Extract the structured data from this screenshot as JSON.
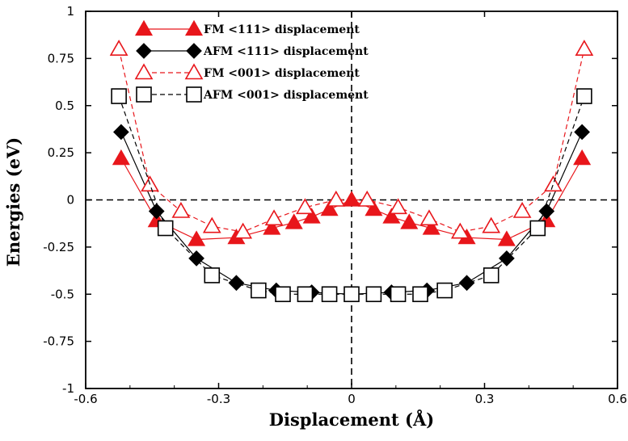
{
  "chart_data": {
    "type": "line",
    "xlabel": "Displacement (Å)",
    "ylabel": "Energies (eV)",
    "xlim": [
      -0.6,
      0.6
    ],
    "ylim": [
      -1,
      1
    ],
    "x_ticks": [
      "-0.6",
      "-0.3",
      "0",
      "0.3",
      "0.6"
    ],
    "y_ticks": [
      "1",
      "0.75",
      "0.5",
      "0.25",
      "0",
      "-0.25",
      "-0.5",
      "-0.75",
      "-1"
    ],
    "reference_lines": {
      "horizontal_y": 0,
      "vertical_x": 0
    },
    "legend_position": "top-center",
    "series": [
      {
        "name": "FM  <111> displacement",
        "color": "#e8161b",
        "line": "solid",
        "marker": "triangle",
        "filled": true,
        "x": [
          -0.52,
          -0.44,
          -0.35,
          -0.26,
          -0.18,
          -0.13,
          -0.09,
          -0.05,
          0.0,
          0.05,
          0.09,
          0.13,
          0.18,
          0.26,
          0.35,
          0.44,
          0.52
        ],
        "y": [
          0.22,
          -0.11,
          -0.21,
          -0.2,
          -0.15,
          -0.12,
          -0.09,
          -0.05,
          0.0,
          -0.05,
          -0.09,
          -0.12,
          -0.15,
          -0.2,
          -0.21,
          -0.11,
          0.22
        ]
      },
      {
        "name": "AFM <111> displacement",
        "color": "#000000",
        "line": "solid",
        "marker": "diamond",
        "filled": true,
        "x": [
          -0.52,
          -0.44,
          -0.35,
          -0.26,
          -0.17,
          -0.09,
          0.0,
          0.09,
          0.17,
          0.26,
          0.35,
          0.44,
          0.52
        ],
        "y": [
          0.36,
          -0.06,
          -0.31,
          -0.44,
          -0.48,
          -0.49,
          -0.5,
          -0.49,
          -0.48,
          -0.44,
          -0.31,
          -0.06,
          0.36
        ]
      },
      {
        "name": "FM  <001> displacement",
        "color": "#e8161b",
        "line": "dashed",
        "marker": "triangle",
        "filled": false,
        "x": [
          -0.525,
          -0.455,
          -0.385,
          -0.315,
          -0.245,
          -0.175,
          -0.105,
          -0.035,
          0.035,
          0.105,
          0.175,
          0.245,
          0.315,
          0.385,
          0.455,
          0.525
        ],
        "y": [
          0.8,
          0.08,
          -0.06,
          -0.14,
          -0.17,
          -0.1,
          -0.04,
          0.0,
          0.0,
          -0.04,
          -0.1,
          -0.17,
          -0.14,
          -0.06,
          0.08,
          0.8
        ]
      },
      {
        "name": "AFM <001> displacement",
        "color": "#000000",
        "line": "dashed",
        "marker": "square",
        "filled": false,
        "x": [
          -0.525,
          -0.42,
          -0.315,
          -0.21,
          -0.155,
          -0.105,
          -0.05,
          0.0,
          0.05,
          0.105,
          0.155,
          0.21,
          0.315,
          0.42,
          0.525
        ],
        "y": [
          0.55,
          -0.15,
          -0.4,
          -0.48,
          -0.5,
          -0.5,
          -0.5,
          -0.5,
          -0.5,
          -0.5,
          -0.5,
          -0.48,
          -0.4,
          -0.15,
          0.55
        ]
      }
    ]
  }
}
